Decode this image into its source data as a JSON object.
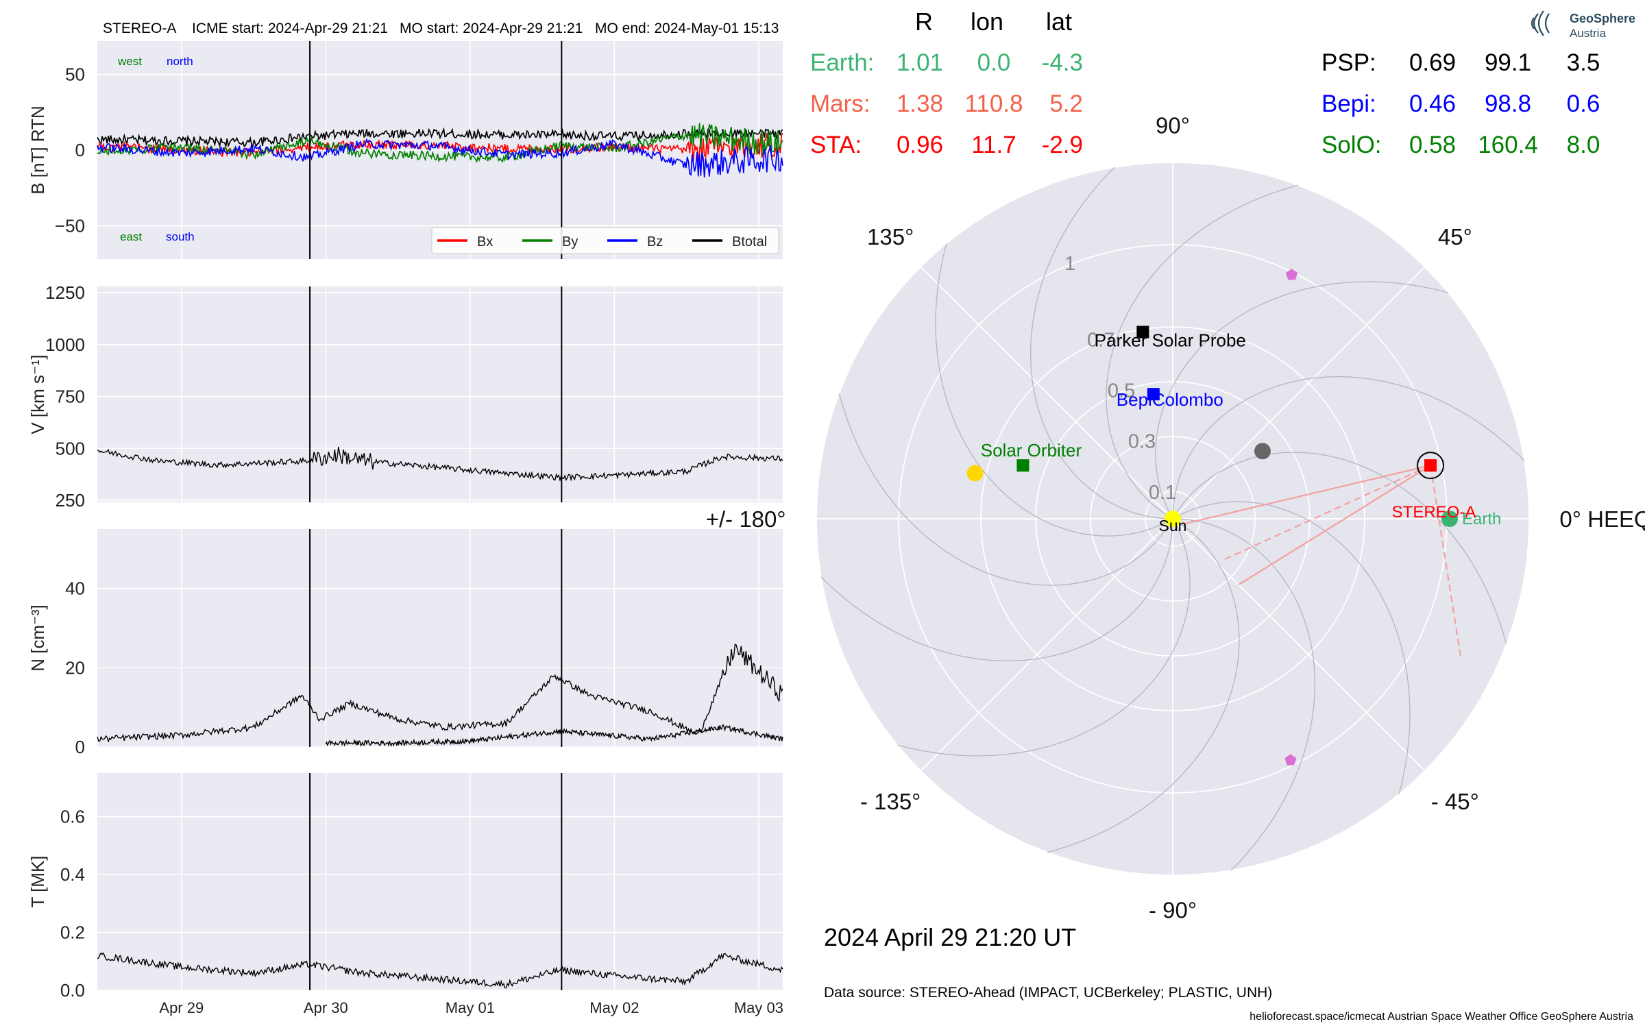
{
  "header": {
    "spacecraft": "STEREO-A",
    "icme_start": "ICME start: 2024-Apr-29 21:21",
    "mo_start": "MO start: 2024-Apr-29 21:21",
    "mo_end": "MO end: 2024-May-01 15:13"
  },
  "logo": {
    "line1": "GeoSphere",
    "line2": "Austria"
  },
  "colors": {
    "bx": "#ff0000",
    "by": "#008000",
    "bz": "#0000ff",
    "btotal": "#000000",
    "earth": "#3cb371",
    "mars": "#f4614a",
    "sta": "#ff0000",
    "psp": "#000000",
    "bepi": "#0000ff",
    "solo": "#008000",
    "panel_bg": "#eaeaf2",
    "polar_bg": "#e5e5ee"
  },
  "chart_data": [
    {
      "type": "line",
      "id": "b-panel",
      "ylabel": "B [nT] RTN",
      "ylim": [
        -72,
        72
      ],
      "yticks": [
        -50,
        0,
        50
      ],
      "grid": true,
      "annotations": {
        "top_left": [
          "west",
          "north"
        ],
        "bottom_left": [
          "east",
          "south"
        ]
      },
      "legend": {
        "placement": "lower-right",
        "entries": [
          "Bx",
          "By",
          "Bz",
          "Btotal"
        ]
      },
      "x_range_days": [
        "2024-04-28 10:00",
        "2024-05-03 04:00"
      ],
      "series": [
        {
          "name": "Btotal",
          "color": "#000000",
          "x": [
            "2024-04-28 10:00",
            "2024-04-29 00:00",
            "2024-04-29 12:00",
            "2024-04-29 21:00",
            "2024-04-30 06:00",
            "2024-04-30 18:00",
            "2024-05-01 06:00",
            "2024-05-01 15:00",
            "2024-05-02 00:00",
            "2024-05-02 12:00",
            "2024-05-03 04:00"
          ],
          "values": [
            7,
            6,
            5,
            9,
            11,
            11,
            10,
            10,
            9,
            11,
            11
          ]
        },
        {
          "name": "Bx",
          "color": "#ff0000",
          "x": [
            "2024-04-28 10:00",
            "2024-04-29 00:00",
            "2024-04-29 12:00",
            "2024-04-29 21:00",
            "2024-04-30 06:00",
            "2024-04-30 18:00",
            "2024-05-01 06:00",
            "2024-05-01 15:00",
            "2024-05-02 00:00",
            "2024-05-02 12:00",
            "2024-05-03 04:00"
          ],
          "values": [
            3,
            0,
            -2,
            2,
            4,
            3,
            1,
            1,
            2,
            0,
            4
          ]
        },
        {
          "name": "By",
          "color": "#008000",
          "x": [
            "2024-04-28 10:00",
            "2024-04-29 00:00",
            "2024-04-29 12:00",
            "2024-04-29 21:00",
            "2024-04-30 06:00",
            "2024-04-30 18:00",
            "2024-05-01 06:00",
            "2024-05-01 15:00",
            "2024-05-02 00:00",
            "2024-05-02 12:00",
            "2024-05-03 04:00"
          ],
          "values": [
            -1,
            2,
            -3,
            6,
            -2,
            -4,
            -5,
            3,
            1,
            10,
            4
          ]
        },
        {
          "name": "Bz",
          "color": "#0000ff",
          "x": [
            "2024-04-28 10:00",
            "2024-04-29 00:00",
            "2024-04-29 12:00",
            "2024-04-29 21:00",
            "2024-04-30 06:00",
            "2024-04-30 18:00",
            "2024-05-01 06:00",
            "2024-05-01 15:00",
            "2024-05-02 00:00",
            "2024-05-02 12:00",
            "2024-05-03 04:00"
          ],
          "values": [
            2,
            -2,
            1,
            -5,
            4,
            3,
            -3,
            -2,
            4,
            -10,
            -5
          ]
        }
      ]
    },
    {
      "type": "line",
      "id": "v-panel",
      "ylabel": "V [km s⁻¹]",
      "ylim": [
        240,
        1280
      ],
      "yticks": [
        250,
        500,
        750,
        1000,
        1250
      ],
      "grid": true,
      "series": [
        {
          "name": "V",
          "color": "#000000",
          "x": [
            "2024-04-28 10:00",
            "2024-04-28 20:00",
            "2024-04-29 06:00",
            "2024-04-29 21:00",
            "2024-04-30 02:00",
            "2024-04-30 06:00",
            "2024-04-30 18:00",
            "2024-05-01 06:00",
            "2024-05-01 15:00",
            "2024-05-02 00:00",
            "2024-05-02 12:00",
            "2024-05-02 18:00",
            "2024-05-03 04:00"
          ],
          "values": [
            490,
            440,
            420,
            440,
            470,
            440,
            410,
            380,
            360,
            370,
            390,
            460,
            450
          ]
        }
      ]
    },
    {
      "type": "line",
      "id": "n-panel",
      "ylabel": "N [cm⁻³]",
      "ylim": [
        0,
        55
      ],
      "yticks": [
        0,
        20,
        40
      ],
      "grid": true,
      "series": [
        {
          "name": "N",
          "color": "#000000",
          "x": [
            "2024-04-28 10:00",
            "2024-04-29 00:00",
            "2024-04-29 12:00",
            "2024-04-29 20:00",
            "2024-04-29 23:00",
            "2024-04-30 04:00",
            "2024-04-30 12:00",
            "2024-04-30 20:00",
            "2024-05-01 06:00",
            "2024-05-01 14:00",
            "2024-05-01 20:00",
            "2024-05-02 06:00",
            "2024-05-02 14:00",
            "2024-05-02 20:00",
            "2024-05-03 04:00"
          ],
          "values": [
            2,
            3,
            5,
            13,
            7,
            11,
            7,
            5,
            6,
            18,
            13,
            9,
            3,
            25,
            13
          ]
        },
        {
          "name": "N-alpha",
          "color": "#000000",
          "x": [
            "2024-04-30 00:00",
            "2024-04-30 12:00",
            "2024-05-01 00:00",
            "2024-05-01 15:00",
            "2024-05-02 06:00",
            "2024-05-02 18:00",
            "2024-05-03 04:00"
          ],
          "values": [
            1,
            1,
            1.5,
            4,
            2,
            5,
            2
          ]
        }
      ]
    },
    {
      "type": "line",
      "id": "t-panel",
      "ylabel": "T [MK]",
      "ylim": [
        0,
        0.75
      ],
      "yticks": [
        0.0,
        0.2,
        0.4,
        0.6
      ],
      "xticks": [
        "Apr 29",
        "Apr 30",
        "May 01",
        "May 02",
        "May 03"
      ],
      "grid": true,
      "series": [
        {
          "name": "T",
          "color": "#000000",
          "x": [
            "2024-04-28 10:00",
            "2024-04-29 00:00",
            "2024-04-29 12:00",
            "2024-04-29 21:00",
            "2024-04-30 06:00",
            "2024-04-30 18:00",
            "2024-05-01 06:00",
            "2024-05-01 15:00",
            "2024-05-02 00:00",
            "2024-05-02 12:00",
            "2024-05-02 18:00",
            "2024-05-03 04:00"
          ],
          "values": [
            0.12,
            0.08,
            0.06,
            0.09,
            0.06,
            0.04,
            0.02,
            0.07,
            0.05,
            0.03,
            0.12,
            0.07
          ]
        }
      ]
    },
    {
      "type": "scatter",
      "id": "polar-position-plot",
      "projection": "polar",
      "radial_ticks": [
        0.1,
        0.3,
        0.5,
        0.7,
        1.0
      ],
      "angle_labels": [
        {
          "deg": 0,
          "label": "0° HEEQ"
        },
        {
          "deg": 45,
          "label": "45°"
        },
        {
          "deg": 90,
          "label": "90°"
        },
        {
          "deg": 135,
          "label": "135°"
        },
        {
          "deg": 180,
          "label": "+/- 180°"
        },
        {
          "deg": -135,
          "label": "- 135°"
        },
        {
          "deg": -90,
          "label": "- 90°"
        },
        {
          "deg": -45,
          "label": "- 45°"
        }
      ],
      "bodies": [
        {
          "name": "Sun",
          "r": 0.0,
          "lon": 0.0,
          "marker": "circle",
          "color": "#ffff00"
        },
        {
          "name": "Earth",
          "r": 1.01,
          "lon": 0.0,
          "marker": "circle",
          "color": "#3cb371"
        },
        {
          "name": "STEREO-A",
          "r": 0.96,
          "lon": 11.7,
          "marker": "square",
          "color": "#ff0000",
          "label_color": "#ff0000"
        },
        {
          "name": "Parker Solar Probe",
          "r": 0.69,
          "lon": 99.1,
          "marker": "square",
          "color": "#000000"
        },
        {
          "name": "BepiColombo",
          "r": 0.46,
          "lon": 98.8,
          "marker": "square",
          "color": "#0000ff"
        },
        {
          "name": "Solar Orbiter",
          "r": 0.58,
          "lon": 160.4,
          "marker": "square",
          "color": "#008000"
        },
        {
          "name": "",
          "r": 0.74,
          "lon": 167.0,
          "marker": "circle",
          "color": "#ffd700"
        },
        {
          "name": "",
          "r": 0.41,
          "lon": 37.0,
          "marker": "circle",
          "color": "#666666"
        },
        {
          "name": "",
          "r": 0.99,
          "lon": 64.0,
          "marker": "pentagon",
          "color": "#da70d6"
        },
        {
          "name": "",
          "r": 0.98,
          "lon": -64.0,
          "marker": "pentagon",
          "color": "#da70d6"
        }
      ],
      "cme_lines": [
        {
          "from": "STEREO-A",
          "to_r": 0.24,
          "to_lon": -38,
          "style": "dashed"
        },
        {
          "from": "STEREO-A",
          "to_r": 0.34,
          "to_lon": -45,
          "style": "solid"
        },
        {
          "from": "STEREO-A",
          "to_r": 0.05,
          "to_lon": -20,
          "style": "solid"
        },
        {
          "from": "STEREO-A",
          "to_r": 1.17,
          "to_lon": -26,
          "style": "dashed"
        }
      ]
    }
  ],
  "positions_table": {
    "headers": [
      "R",
      "lon",
      "lat"
    ],
    "left_rows": [
      {
        "name": "Earth:",
        "r": "1.01",
        "lon": "0.0",
        "lat": "-4.3",
        "color": "#3cb371"
      },
      {
        "name": "Mars:",
        "r": "1.38",
        "lon": "110.8",
        "lat": "5.2",
        "color": "#f4614a"
      },
      {
        "name": "STA:",
        "r": "0.96",
        "lon": "11.7",
        "lat": "-2.9",
        "color": "#ff0000"
      }
    ],
    "right_rows": [
      {
        "name": "PSP:",
        "r": "0.69",
        "lon": "99.1",
        "lat": "3.5",
        "color": "#000000"
      },
      {
        "name": "Bepi:",
        "r": "0.46",
        "lon": "98.8",
        "lat": "0.6",
        "color": "#0000ff"
      },
      {
        "name": "SolO:",
        "r": "0.58",
        "lon": "160.4",
        "lat": "8.0",
        "color": "#008000"
      }
    ]
  },
  "footer": {
    "datetime": "2024 April 29  21:20 UT",
    "data_source": "Data source: STEREO-Ahead (IMPACT, UCBerkeley; PLASTIC, UNH)",
    "credits": "helioforecast.space/icmecat   Austrian Space Weather Office   GeoSphere Austria"
  }
}
